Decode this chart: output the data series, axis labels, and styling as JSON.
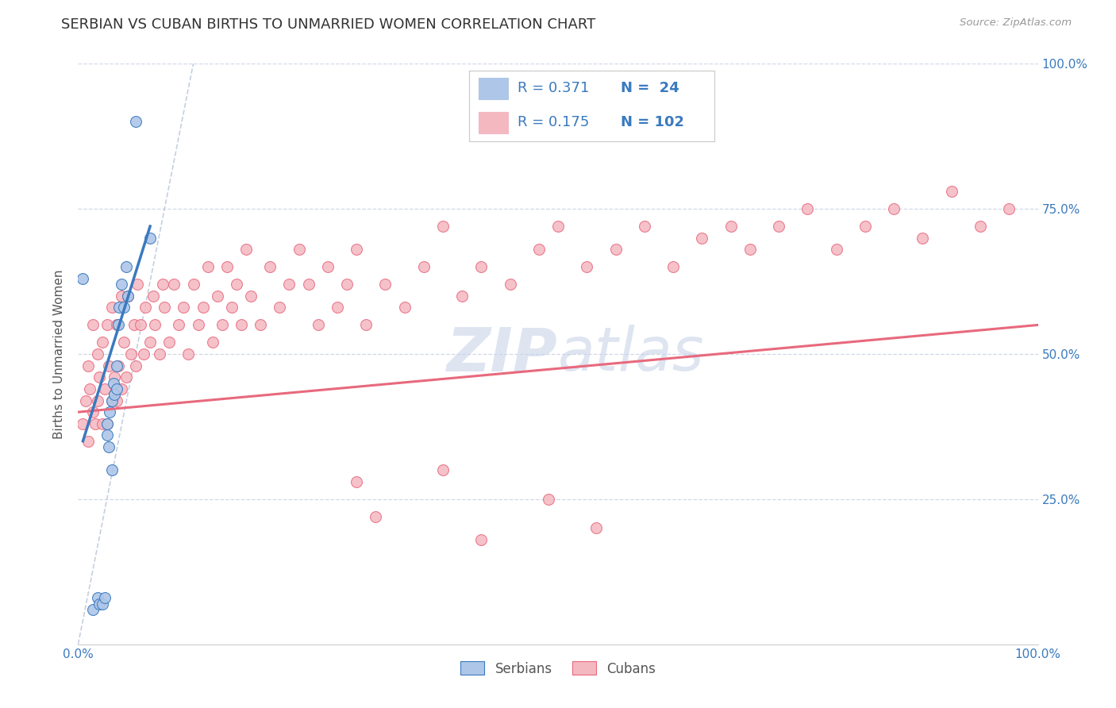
{
  "title": "SERBIAN VS CUBAN BIRTHS TO UNMARRIED WOMEN CORRELATION CHART",
  "source_text": "Source: ZipAtlas.com",
  "ylabel": "Births to Unmarried Women",
  "xlim": [
    0.0,
    1.0
  ],
  "ylim": [
    0.0,
    1.0
  ],
  "ytick_labels_right": [
    "100.0%",
    "75.0%",
    "50.0%",
    "25.0%"
  ],
  "ytick_positions": [
    1.0,
    0.75,
    0.5,
    0.25
  ],
  "xtick_left_label": "0.0%",
  "xtick_right_label": "100.0%",
  "serbian_R": "0.371",
  "serbian_N": "24",
  "cuban_R": "0.175",
  "cuban_N": "102",
  "serbian_color": "#aec6e8",
  "cuban_color": "#f4b8c1",
  "serbian_line_color": "#3a7abf",
  "cuban_line_color": "#e8697d",
  "diagonal_color": "#b8c4d8",
  "background_color": "#ffffff",
  "grid_color": "#d0d8e8",
  "title_color": "#333333",
  "axis_label_color": "#3a7abf",
  "watermark_color": "#c8d4e8",
  "legend_box_color": "#cccccc",
  "bottom_legend_label_color": "#555555",
  "serbian_scatter_x": [
    0.015,
    0.02,
    0.022,
    0.025,
    0.028,
    0.03,
    0.03,
    0.032,
    0.033,
    0.035,
    0.035,
    0.037,
    0.038,
    0.04,
    0.04,
    0.042,
    0.043,
    0.045,
    0.048,
    0.05,
    0.052,
    0.06,
    0.075,
    0.005
  ],
  "serbian_scatter_y": [
    0.06,
    0.08,
    0.07,
    0.07,
    0.08,
    0.36,
    0.38,
    0.34,
    0.4,
    0.3,
    0.42,
    0.45,
    0.43,
    0.48,
    0.44,
    0.55,
    0.58,
    0.62,
    0.58,
    0.65,
    0.6,
    0.9,
    0.7,
    0.63
  ],
  "cuban_scatter_x": [
    0.005,
    0.008,
    0.01,
    0.01,
    0.012,
    0.015,
    0.015,
    0.018,
    0.02,
    0.02,
    0.022,
    0.025,
    0.025,
    0.028,
    0.03,
    0.03,
    0.032,
    0.035,
    0.035,
    0.038,
    0.04,
    0.04,
    0.042,
    0.045,
    0.045,
    0.048,
    0.05,
    0.052,
    0.055,
    0.058,
    0.06,
    0.062,
    0.065,
    0.068,
    0.07,
    0.075,
    0.078,
    0.08,
    0.085,
    0.088,
    0.09,
    0.095,
    0.1,
    0.105,
    0.11,
    0.115,
    0.12,
    0.125,
    0.13,
    0.135,
    0.14,
    0.145,
    0.15,
    0.155,
    0.16,
    0.165,
    0.17,
    0.175,
    0.18,
    0.19,
    0.2,
    0.21,
    0.22,
    0.23,
    0.24,
    0.25,
    0.26,
    0.27,
    0.28,
    0.29,
    0.3,
    0.32,
    0.34,
    0.36,
    0.38,
    0.4,
    0.42,
    0.45,
    0.48,
    0.5,
    0.53,
    0.56,
    0.59,
    0.62,
    0.65,
    0.68,
    0.7,
    0.73,
    0.76,
    0.79,
    0.82,
    0.85,
    0.88,
    0.91,
    0.94,
    0.97,
    0.54,
    0.49,
    0.42,
    0.38,
    0.31,
    0.29
  ],
  "cuban_scatter_y": [
    0.38,
    0.42,
    0.35,
    0.48,
    0.44,
    0.4,
    0.55,
    0.38,
    0.42,
    0.5,
    0.46,
    0.38,
    0.52,
    0.44,
    0.38,
    0.55,
    0.48,
    0.42,
    0.58,
    0.46,
    0.42,
    0.55,
    0.48,
    0.6,
    0.44,
    0.52,
    0.46,
    0.6,
    0.5,
    0.55,
    0.48,
    0.62,
    0.55,
    0.5,
    0.58,
    0.52,
    0.6,
    0.55,
    0.5,
    0.62,
    0.58,
    0.52,
    0.62,
    0.55,
    0.58,
    0.5,
    0.62,
    0.55,
    0.58,
    0.65,
    0.52,
    0.6,
    0.55,
    0.65,
    0.58,
    0.62,
    0.55,
    0.68,
    0.6,
    0.55,
    0.65,
    0.58,
    0.62,
    0.68,
    0.62,
    0.55,
    0.65,
    0.58,
    0.62,
    0.68,
    0.55,
    0.62,
    0.58,
    0.65,
    0.72,
    0.6,
    0.65,
    0.62,
    0.68,
    0.72,
    0.65,
    0.68,
    0.72,
    0.65,
    0.7,
    0.72,
    0.68,
    0.72,
    0.75,
    0.68,
    0.72,
    0.75,
    0.7,
    0.78,
    0.72,
    0.75,
    0.2,
    0.25,
    0.18,
    0.3,
    0.22,
    0.28
  ],
  "cuban_trend_x": [
    0.0,
    1.0
  ],
  "cuban_trend_y": [
    0.4,
    0.55
  ],
  "serbian_trend_x": [
    0.005,
    0.075
  ],
  "serbian_trend_y": [
    0.35,
    0.72
  ]
}
